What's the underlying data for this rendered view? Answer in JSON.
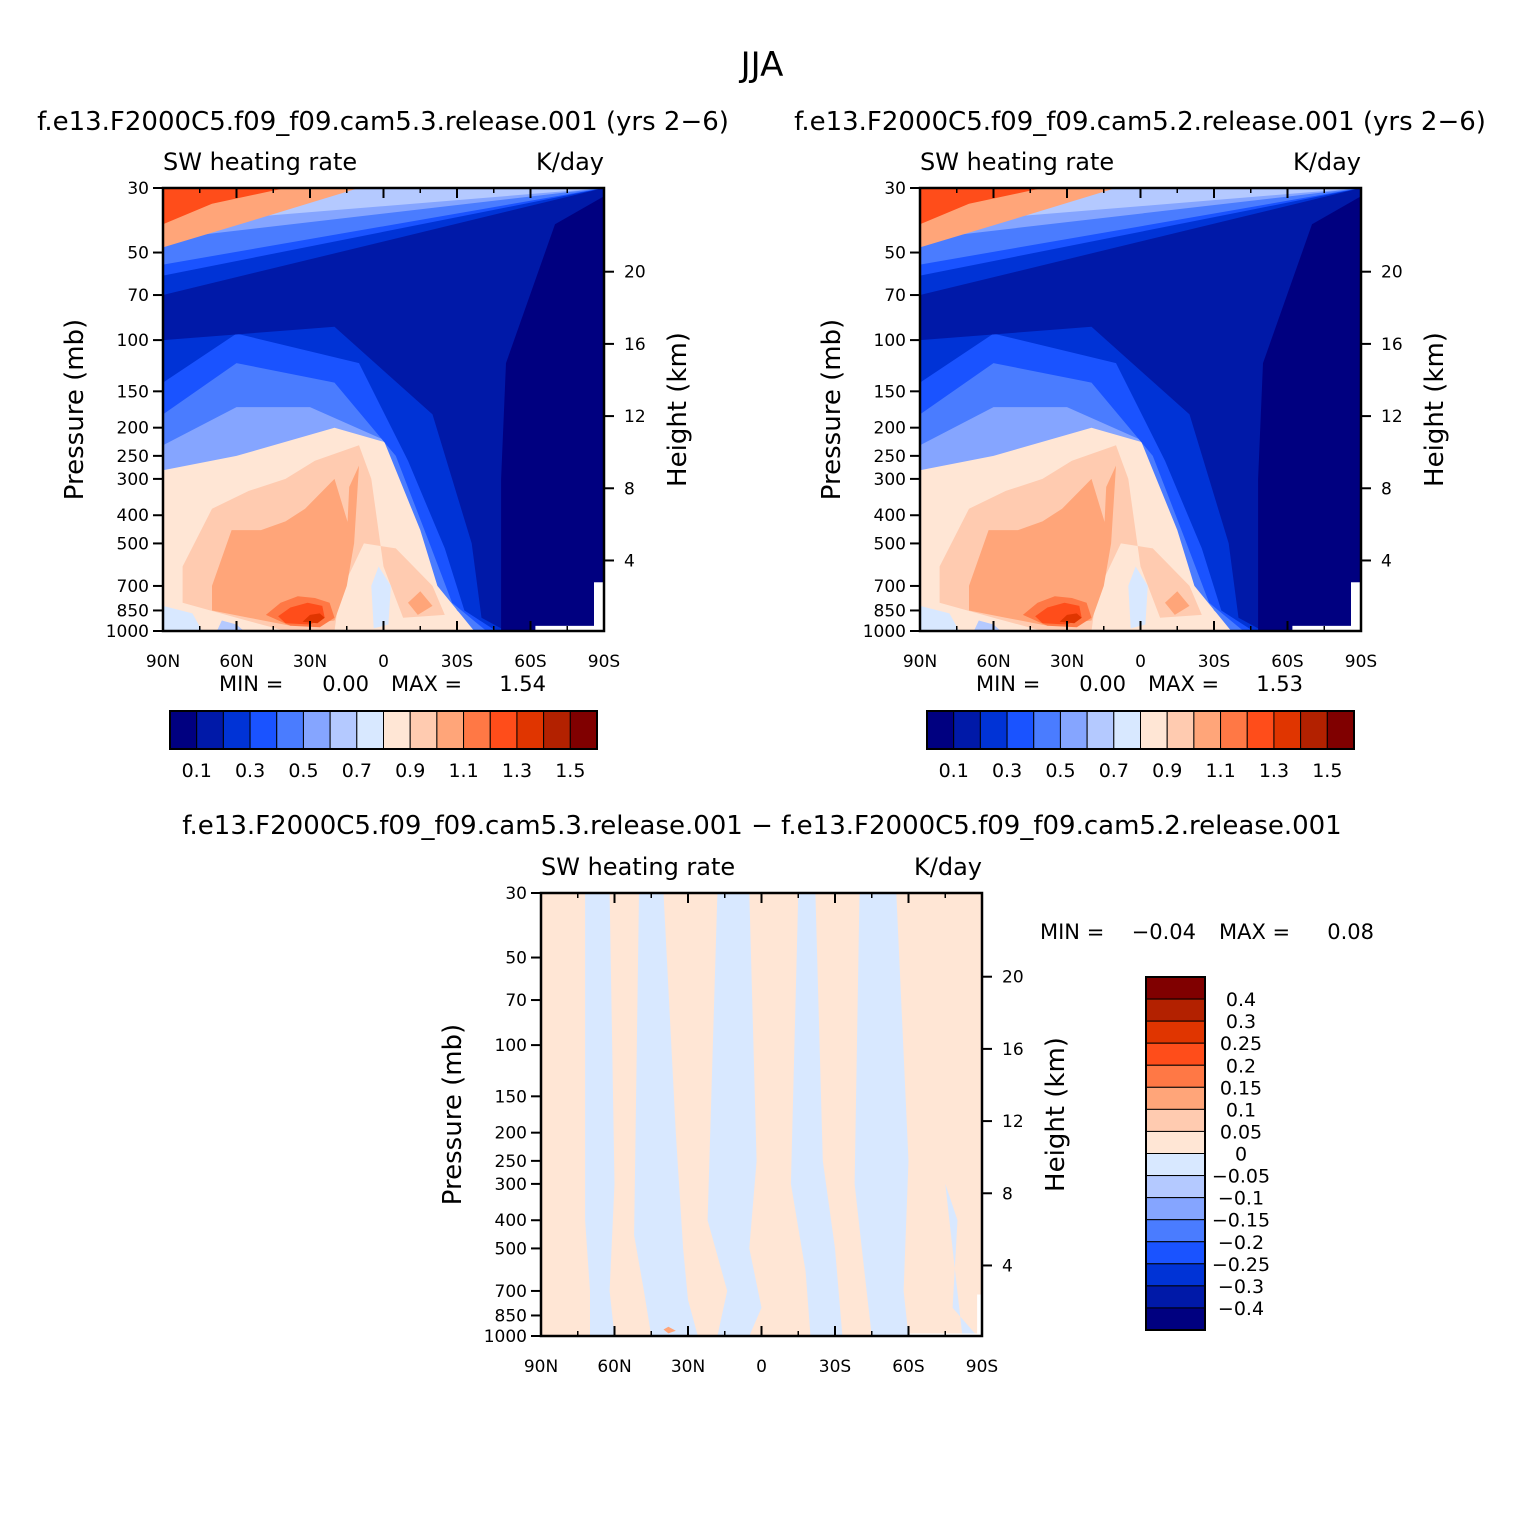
{
  "page_title": "JJA",
  "color_scales": {
    "top": [
      "#000080",
      "#0019a8",
      "#0033d6",
      "#1a53ff",
      "#4a7cff",
      "#85a5ff",
      "#b4c9ff",
      "#d8e8ff",
      "#ffe6d5",
      "#ffcbb0",
      "#ffa579",
      "#ff7845",
      "#ff4d1a",
      "#e03500",
      "#b32100",
      "#800000"
    ],
    "diff": [
      "#000080",
      "#0019a8",
      "#0033d6",
      "#1a53ff",
      "#4a7cff",
      "#85a5ff",
      "#b4c9ff",
      "#d8e8ff",
      "#ffe6d5",
      "#ffcbb0",
      "#ffa579",
      "#ff7845",
      "#ff4d1a",
      "#e03500",
      "#b32100",
      "#800000"
    ]
  },
  "chart_data": [
    {
      "type": "heatmap",
      "id": "panel-left",
      "case_title": "f.e13.F2000C5.f09_f09.cam5.3.release.001 (yrs 2−6)",
      "variable": "SW heating rate",
      "units": "K/day",
      "ylabel": "Pressure (mb)",
      "ylabel_right": "Height (km)",
      "x_ticks": [
        "90N",
        "60N",
        "30N",
        "0",
        "30S",
        "60S",
        "90S"
      ],
      "y_ticks": [
        "30",
        "50",
        "70",
        "100",
        "150",
        "200",
        "250",
        "300",
        "400",
        "500",
        "700",
        "850",
        "1000"
      ],
      "height_ticks": [
        "20",
        "16",
        "12",
        "8",
        "4"
      ],
      "min_label": "MIN =",
      "min_value": "0.00",
      "max_label": "MAX =",
      "max_value": "1.54",
      "colorbar_labels": [
        "0.1",
        "0.3",
        "0.5",
        "0.7",
        "0.9",
        "1.1",
        "1.3",
        "1.5"
      ]
    },
    {
      "type": "heatmap",
      "id": "panel-right",
      "case_title": "f.e13.F2000C5.f09_f09.cam5.2.release.001 (yrs 2−6)",
      "variable": "SW heating rate",
      "units": "K/day",
      "ylabel": "Pressure (mb)",
      "ylabel_right": "Height (km)",
      "x_ticks": [
        "90N",
        "60N",
        "30N",
        "0",
        "30S",
        "60S",
        "90S"
      ],
      "y_ticks": [
        "30",
        "50",
        "70",
        "100",
        "150",
        "200",
        "250",
        "300",
        "400",
        "500",
        "700",
        "850",
        "1000"
      ],
      "height_ticks": [
        "20",
        "16",
        "12",
        "8",
        "4"
      ],
      "min_label": "MIN =",
      "min_value": "0.00",
      "max_label": "MAX =",
      "max_value": "1.53",
      "colorbar_labels": [
        "0.1",
        "0.3",
        "0.5",
        "0.7",
        "0.9",
        "1.1",
        "1.3",
        "1.5"
      ]
    },
    {
      "type": "heatmap",
      "id": "panel-diff",
      "case_title": "f.e13.F2000C5.f09_f09.cam5.3.release.001 − f.e13.F2000C5.f09_f09.cam5.2.release.001",
      "variable": "SW heating rate",
      "units": "K/day",
      "ylabel": "Pressure (mb)",
      "ylabel_right": "Height (km)",
      "x_ticks": [
        "90N",
        "60N",
        "30N",
        "0",
        "30S",
        "60S",
        "90S"
      ],
      "y_ticks": [
        "30",
        "50",
        "70",
        "100",
        "150",
        "200",
        "250",
        "300",
        "400",
        "500",
        "700",
        "850",
        "1000"
      ],
      "height_ticks": [
        "20",
        "16",
        "12",
        "8",
        "4"
      ],
      "min_label": "MIN =",
      "min_value": "−0.04",
      "max_label": "MAX =",
      "max_value": "0.08",
      "colorbar_labels": [
        "0.4",
        "0.3",
        "0.25",
        "0.2",
        "0.15",
        "0.1",
        "0.05",
        "0",
        "−0.05",
        "−0.1",
        "−0.15",
        "−0.2",
        "−0.25",
        "−0.3",
        "−0.4"
      ]
    }
  ]
}
